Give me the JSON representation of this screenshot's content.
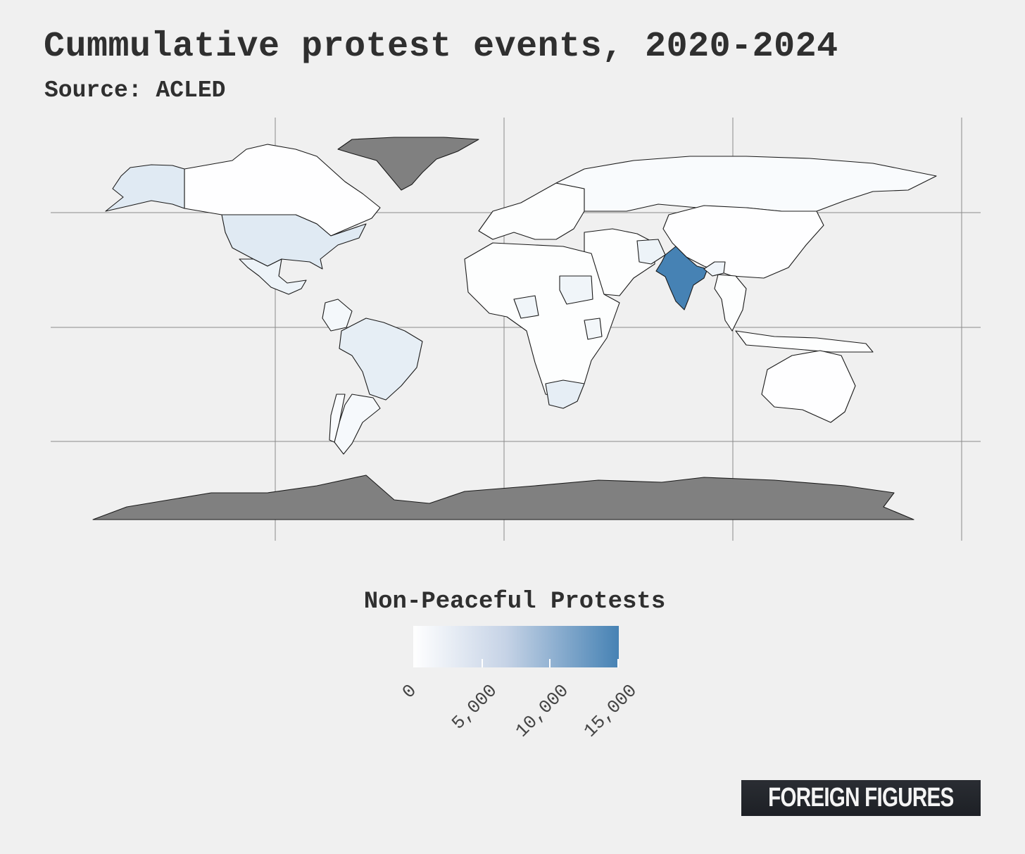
{
  "chart_data": {
    "type": "choropleth",
    "title": "Cummulative protest events, 2020-2024",
    "subtitle": "Source: ACLED",
    "legend": {
      "title": "Non-Peaceful Protests",
      "min": 0,
      "max": 15000,
      "ticks": [
        "0",
        "5,000",
        "10,000",
        "15,000"
      ],
      "color_low": "#ffffff",
      "color_high": "#4682b4"
    },
    "no_data_color": "#808080",
    "regions": [
      {
        "name": "India",
        "value": 15000
      },
      {
        "name": "United States",
        "value": 2500
      },
      {
        "name": "Brazil",
        "value": 2000
      },
      {
        "name": "Alaska",
        "value": 2500
      },
      {
        "name": "South Africa",
        "value": 2000
      },
      {
        "name": "Mexico",
        "value": 1500
      },
      {
        "name": "Pakistan",
        "value": 1500
      },
      {
        "name": "Sudan",
        "value": 1200
      },
      {
        "name": "Nigeria",
        "value": 1200
      },
      {
        "name": "Kenya",
        "value": 1000
      },
      {
        "name": "Colombia",
        "value": 900
      },
      {
        "name": "Argentina",
        "value": 700
      },
      {
        "name": "Chile",
        "value": 500
      },
      {
        "name": "Russia",
        "value": 500
      },
      {
        "name": "Bangladesh",
        "value": 1300
      },
      {
        "name": "China",
        "value": 100
      },
      {
        "name": "Canada",
        "value": 100
      },
      {
        "name": "Australia",
        "value": 100
      },
      {
        "name": "Greenland",
        "value": null
      },
      {
        "name": "Antarctica",
        "value": null
      }
    ]
  },
  "brand": "FOREIGN FIGURES"
}
